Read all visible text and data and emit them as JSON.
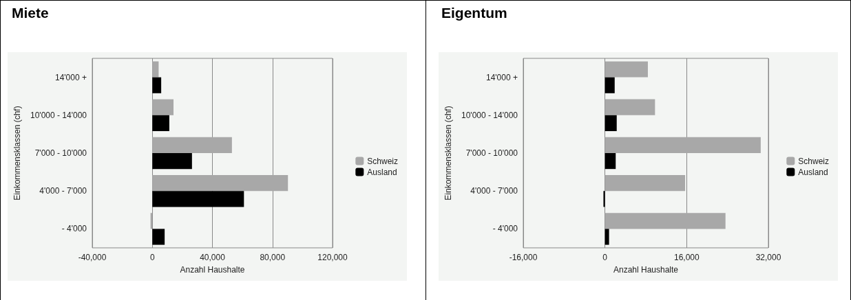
{
  "chart_data": [
    {
      "type": "bar",
      "title": "Miete",
      "orientation": "horizontal",
      "categories": [
        "14'000 +",
        "10'000 - 14'000",
        "7'000 - 10'000",
        "4'000 - 7'000",
        "- 4'000"
      ],
      "xlabel": "Anzahl Haushalte",
      "ylabel": "Einkommensklassen (chf)",
      "xlim": [
        -40000,
        120000
      ],
      "xticks": [
        {
          "value": -40000,
          "label": "-40,000"
        },
        0,
        {
          "value": 40000,
          "label": "40,000"
        },
        {
          "value": 80000,
          "label": "80,000"
        },
        {
          "value": 120000,
          "label": "120,000"
        }
      ],
      "grid": "x",
      "legend": "right",
      "series": [
        {
          "name": "Schweiz",
          "color": "#a8a8a8",
          "values": [
            4200,
            14100,
            53000,
            90300,
            -1200
          ]
        },
        {
          "name": "Ausland",
          "color": "#000000",
          "values": [
            5900,
            11300,
            26400,
            61000,
            8200
          ]
        }
      ]
    },
    {
      "type": "bar",
      "title": "Eigentum",
      "orientation": "horizontal",
      "categories": [
        "14'000 +",
        "10'000 - 14'000",
        "7'000 - 10'000",
        "4'000 - 7'000",
        "- 4'000"
      ],
      "xlabel": "Anzahl Haushalte",
      "ylabel": "Einkommensklassen (chf)",
      "xlim": [
        -16000,
        32000
      ],
      "xticks": [
        {
          "value": -16000,
          "label": "-16,000"
        },
        0,
        {
          "value": 16000,
          "label": "16,000"
        },
        {
          "value": 32000,
          "label": "32,000"
        }
      ],
      "grid": "x",
      "legend": "right",
      "series": [
        {
          "name": "Schweiz",
          "color": "#a8a8a8",
          "values": [
            8400,
            9800,
            30500,
            15700,
            23600
          ]
        },
        {
          "name": "Ausland",
          "color": "#000000",
          "values": [
            1900,
            2300,
            2100,
            -300,
            800
          ]
        }
      ]
    }
  ]
}
